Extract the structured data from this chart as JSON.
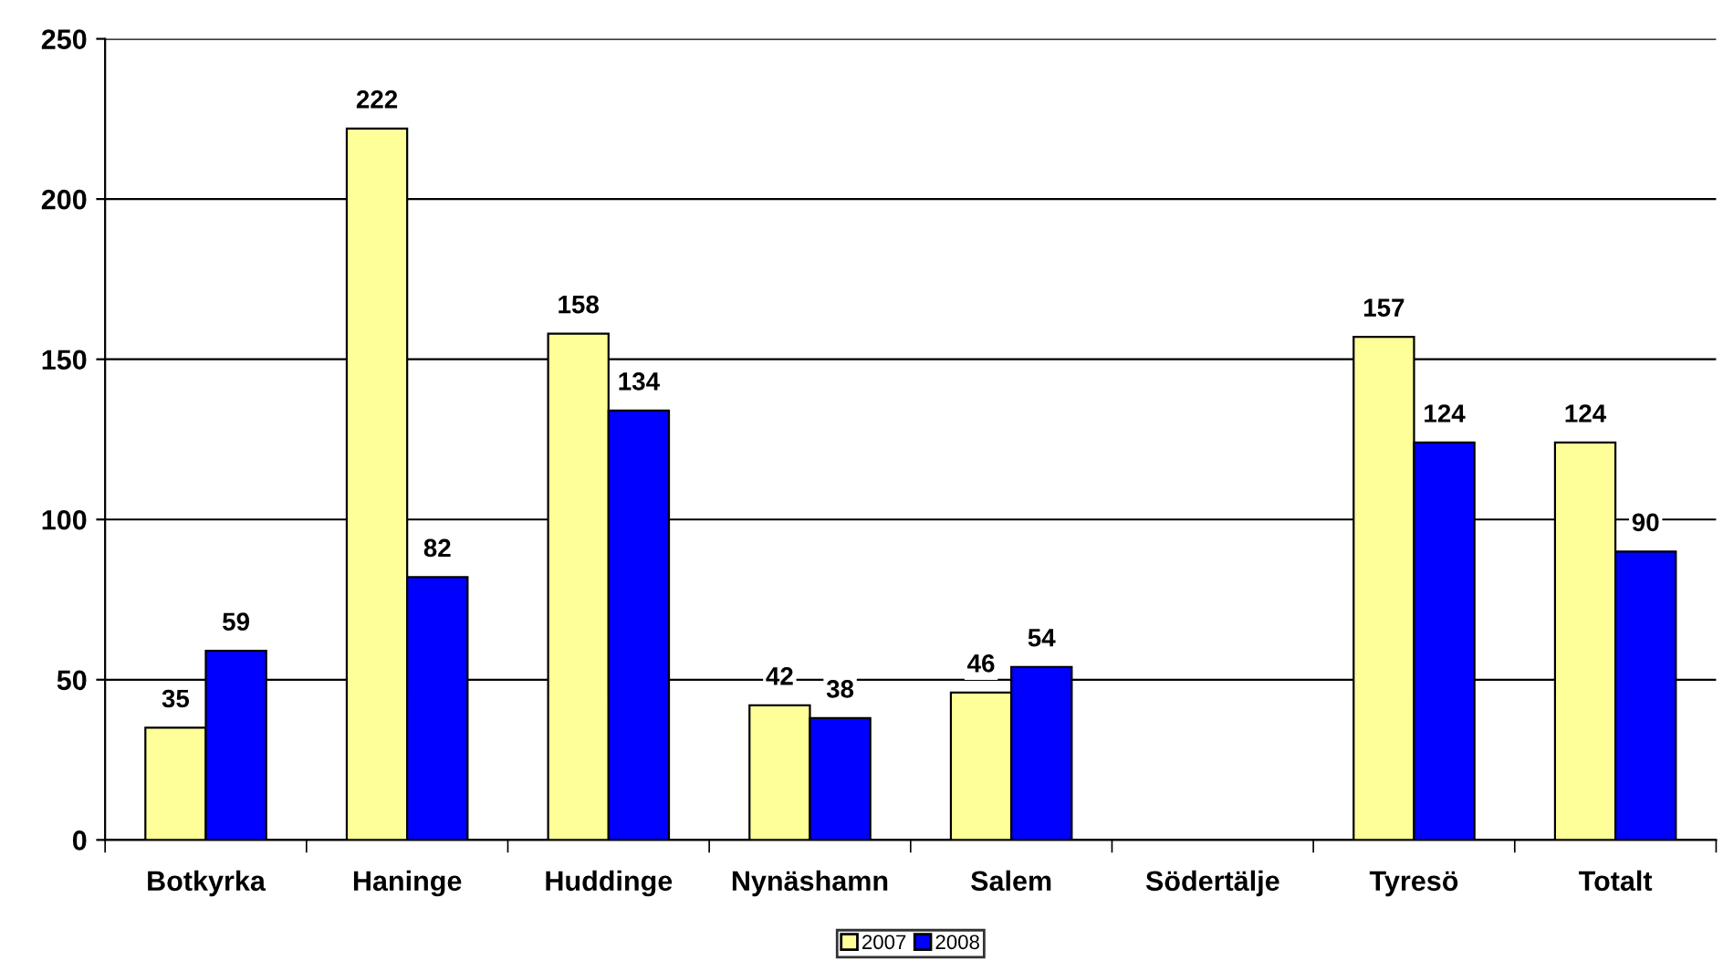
{
  "chart_data": {
    "type": "bar",
    "categories": [
      "Botkyrka",
      "Haninge",
      "Huddinge",
      "Nynäshamn",
      "Salem",
      "Södertälje",
      "Tyresö",
      "Totalt"
    ],
    "series": [
      {
        "name": "2007",
        "color": "#ffff99",
        "values": [
          35,
          222,
          158,
          42,
          46,
          null,
          157,
          124
        ]
      },
      {
        "name": "2008",
        "color": "#0000ff",
        "values": [
          59,
          82,
          134,
          38,
          54,
          null,
          124,
          90
        ]
      }
    ],
    "ylim": [
      0,
      250
    ],
    "yticks": [
      0,
      50,
      100,
      150,
      200,
      250
    ],
    "grid": "y",
    "legend": "bottom",
    "data_labels": true
  }
}
